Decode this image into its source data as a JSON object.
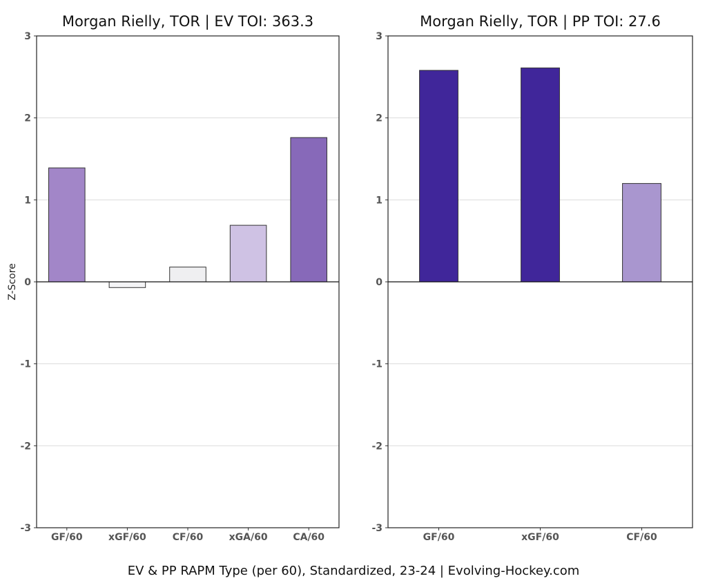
{
  "chart_data": [
    {
      "type": "bar",
      "title": "Morgan Rielly, TOR  |  EV TOI: 363.3",
      "ylabel": "Z-Score",
      "xlabel": "",
      "ylim": [
        -3,
        3
      ],
      "yticks": [
        -3,
        -2,
        -1,
        0,
        1,
        2,
        3
      ],
      "grid": true,
      "categories": [
        "GF/60",
        "xGF/60",
        "CF/60",
        "xGA/60",
        "CA/60"
      ],
      "values": [
        1.39,
        -0.07,
        0.18,
        0.69,
        1.76
      ],
      "colors": [
        "#a286c8",
        "#f4f4f6",
        "#efeff1",
        "#cfc2e4",
        "#8769b9"
      ]
    },
    {
      "type": "bar",
      "title": "Morgan Rielly, TOR  |  PP TOI: 27.6",
      "ylabel": "",
      "xlabel": "",
      "ylim": [
        -3,
        3
      ],
      "yticks": [
        -3,
        -2,
        -1,
        0,
        1,
        2,
        3
      ],
      "grid": true,
      "categories": [
        "GF/60",
        "xGF/60",
        "CF/60"
      ],
      "values": [
        2.58,
        2.61,
        1.2
      ],
      "colors": [
        "#40269a",
        "#40269a",
        "#a996cf"
      ]
    }
  ],
  "caption": "EV & PP RAPM Type (per 60), Standardized, 23-24    |    Evolving-Hockey.com"
}
